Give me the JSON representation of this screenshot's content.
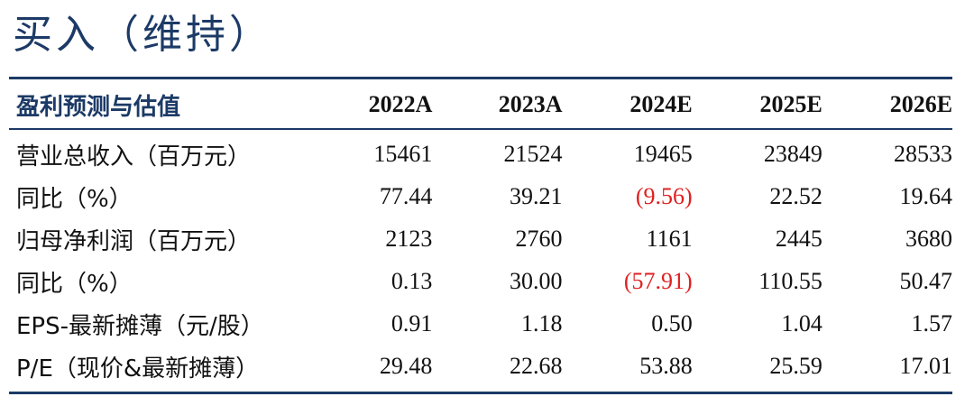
{
  "rating": "买入（维持）",
  "table": {
    "header_label": "盈利预测与估值",
    "years": [
      "2022A",
      "2023A",
      "2024E",
      "2025E",
      "2026E"
    ],
    "rows": [
      {
        "label": "营业总收入（百万元）",
        "values": [
          "15461",
          "21524",
          "19465",
          "23849",
          "28533"
        ]
      },
      {
        "label": "同比（%）",
        "values": [
          "77.44",
          "39.21",
          "(9.56)",
          "22.52",
          "19.64"
        ]
      },
      {
        "label": "归母净利润（百万元）",
        "values": [
          "2123",
          "2760",
          "1161",
          "2445",
          "3680"
        ]
      },
      {
        "label": "同比（%）",
        "values": [
          "0.13",
          "30.00",
          "(57.91)",
          "110.55",
          "50.47"
        ]
      },
      {
        "label": "EPS-最新摊薄（元/股）",
        "values": [
          "0.91",
          "1.18",
          "0.50",
          "1.04",
          "1.57"
        ]
      },
      {
        "label": "P/E（现价&最新摊薄）",
        "values": [
          "29.48",
          "22.68",
          "53.88",
          "25.59",
          "17.01"
        ]
      }
    ]
  },
  "colors": {
    "accent": "#1c3a66",
    "negative": "#e02020"
  }
}
